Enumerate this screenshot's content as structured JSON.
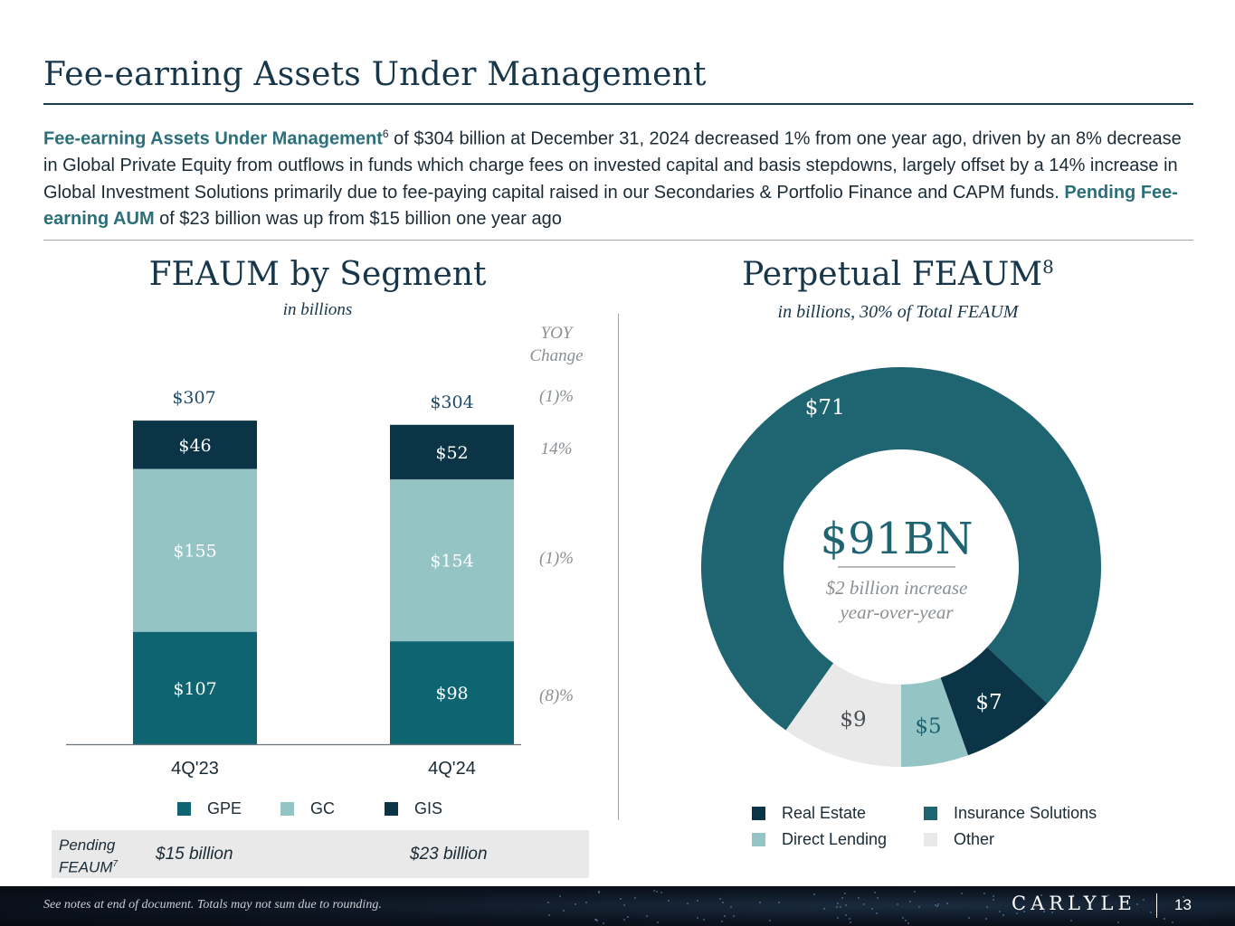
{
  "page": {
    "title": "Fee-earning Assets Under Management",
    "intro": {
      "highlight1": "Fee-earning Assets Under Management",
      "sup1": "6",
      "text1": " of $304 billion at December 31, 2024 decreased 1% from one year ago, driven by an 8% decrease in Global Private Equity from outflows in funds which charge fees on invested capital and basis stepdowns, largely offset by a 14% increase in Global Investment Solutions primarily due to fee-paying capital raised in our Secondaries & Portfolio Finance and CAPM funds. ",
      "highlight2": "Pending Fee-earning AUM",
      "text2": " of $23 billion was up from $15 billion one year ago"
    },
    "footer_note": "See notes at end of document. Totals may not sum due to rounding.",
    "logo": "CARLYLE",
    "page_number": "13"
  },
  "colors": {
    "gpe": "#0e6470",
    "gc": "#95c4c5",
    "gis": "#0b3447",
    "insurance": "#1e6571",
    "real_estate": "#0b3447",
    "direct_lending": "#95c4c5",
    "other": "#e9e9e9"
  },
  "segment_panel": {
    "title": "FEAUM by Segment",
    "subtitle": "in billions",
    "yoy_header_line1": "YOY",
    "yoy_header_line2": "Change",
    "pending": {
      "label_line1": "Pending",
      "label_line2": "FEAUM",
      "label_sup": "7",
      "value_4q23": "$15 billion",
      "value_4q24": "$23 billion"
    }
  },
  "perpetual_panel": {
    "title": "Perpetual FEAUM",
    "title_sup": "8",
    "subtitle": "in billions, 30% of Total FEAUM",
    "center_value": "$91BN",
    "center_note_line1": "$2 billion increase",
    "center_note_line2": "year-over-year"
  },
  "chart_data": [
    {
      "type": "bar",
      "stacked": true,
      "categories": [
        "4Q'23",
        "4Q'24"
      ],
      "series": [
        {
          "name": "GPE",
          "values": [
            107,
            98
          ],
          "labels": [
            "$107",
            "$98"
          ],
          "yoy": "(8)%"
        },
        {
          "name": "GC",
          "values": [
            155,
            154
          ],
          "labels": [
            "$155",
            "$154"
          ],
          "yoy": "(1)%"
        },
        {
          "name": "GIS",
          "values": [
            46,
            52
          ],
          "labels": [
            "$46",
            "$52"
          ],
          "yoy": "14%"
        }
      ],
      "totals": [
        307,
        304
      ],
      "total_labels": [
        "$307",
        "$304"
      ],
      "total_yoy": "(1)%",
      "legend": [
        "GPE",
        "GC",
        "GIS"
      ],
      "legend_position": "bottom",
      "ylim": [
        0,
        330
      ],
      "grid": false
    },
    {
      "type": "pie",
      "donut": true,
      "slices": [
        {
          "name": "Insurance Solutions",
          "value": 71,
          "label": "$71"
        },
        {
          "name": "Real Estate",
          "value": 7,
          "label": "$7"
        },
        {
          "name": "Direct Lending",
          "value": 5,
          "label": "$5"
        },
        {
          "name": "Other",
          "value": 9,
          "label": "$9"
        }
      ],
      "legend": [
        "Real Estate",
        "Insurance Solutions",
        "Direct Lending",
        "Other"
      ],
      "legend_position": "bottom"
    }
  ]
}
